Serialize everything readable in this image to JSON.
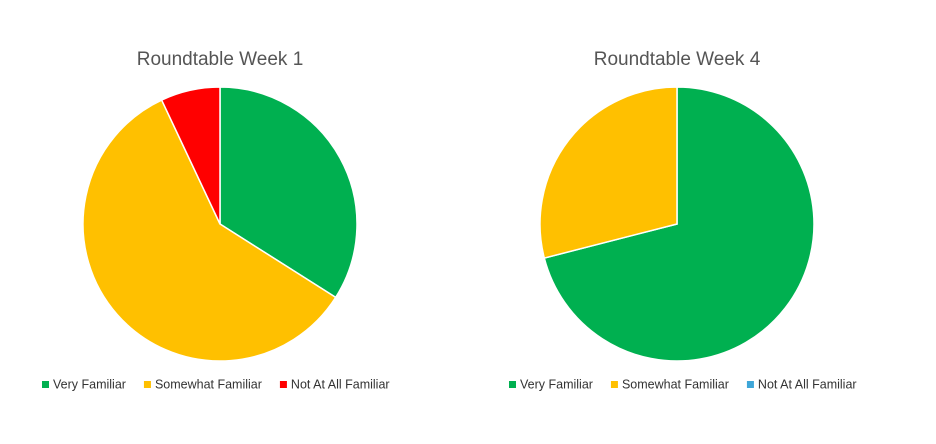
{
  "chart_data": [
    {
      "type": "pie",
      "title": "Roundtable Week 1",
      "categories": [
        "Very Familiar",
        "Somewhat Familiar",
        "Not At All Familiar"
      ],
      "values": [
        34,
        59,
        7
      ],
      "colors": [
        "#00b050",
        "#ffc000",
        "#ff0000"
      ]
    },
    {
      "type": "pie",
      "title": "Roundtable Week 4",
      "categories": [
        "Very Familiar",
        "Somewhat Familiar",
        "Not At All Familiar"
      ],
      "values": [
        71,
        29,
        0
      ],
      "colors": [
        "#00b050",
        "#ffc000",
        "#3ea6d8"
      ]
    }
  ]
}
